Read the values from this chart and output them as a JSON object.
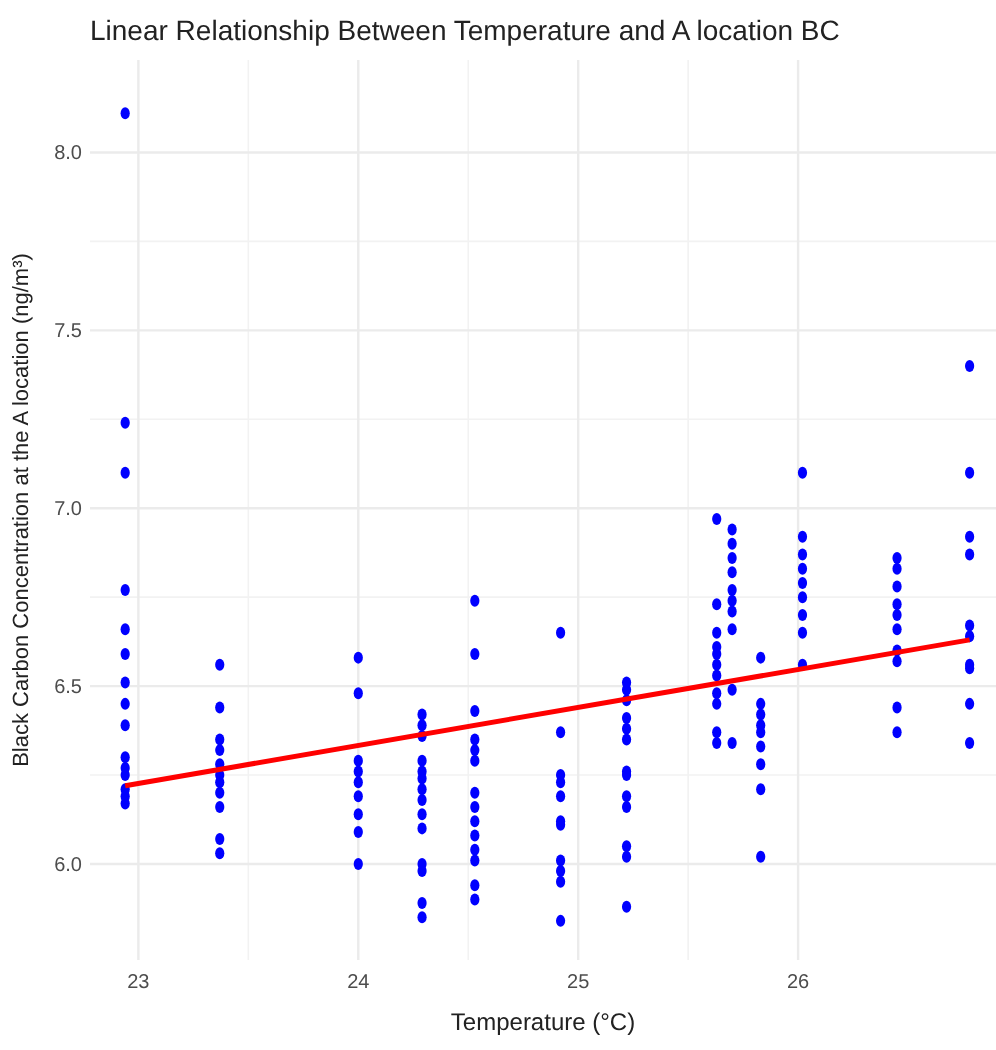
{
  "chart_data": {
    "type": "scatter",
    "title": "Linear Relationship Between Temperature and A location BC",
    "xlabel": "Temperature (°C)",
    "ylabel": "Black Carbon Concentration at the A location (ng/m³)",
    "xlim": [
      22.78,
      26.9
    ],
    "ylim": [
      5.73,
      8.26
    ],
    "xticks": [
      23,
      24,
      25,
      26
    ],
    "yticks": [
      {
        "value": 6,
        "label": "6.0"
      },
      {
        "value": 6.5,
        "label": "6.5"
      },
      {
        "value": 7,
        "label": "7.0"
      },
      {
        "value": 7.5,
        "label": "7.5"
      },
      {
        "value": 8,
        "label": "8.0"
      }
    ],
    "grid": true,
    "marker": "circle",
    "series": [
      {
        "color": "#0000ff",
        "x": [
          22.94,
          22.94,
          22.94,
          22.94,
          22.94,
          22.94,
          22.94,
          22.94,
          22.94,
          22.94,
          22.94,
          22.94,
          22.94,
          22.94,
          22.94,
          23.37,
          23.37,
          23.37,
          23.37,
          23.37,
          23.37,
          23.37,
          23.37,
          23.37,
          23.37,
          23.37,
          24.0,
          24.0,
          24.0,
          24.0,
          24.0,
          24.0,
          24.0,
          24.0,
          24.0,
          24.29,
          24.29,
          24.29,
          24.29,
          24.29,
          24.29,
          24.29,
          24.29,
          24.29,
          24.29,
          24.29,
          24.29,
          24.29,
          24.29,
          24.53,
          24.53,
          24.53,
          24.53,
          24.53,
          24.53,
          24.53,
          24.53,
          24.53,
          24.53,
          24.53,
          24.53,
          24.53,
          24.53,
          24.92,
          24.92,
          24.92,
          24.92,
          24.92,
          24.92,
          24.92,
          24.92,
          24.92,
          24.92,
          24.92,
          25.22,
          25.22,
          25.22,
          25.22,
          25.22,
          25.22,
          25.22,
          25.22,
          25.22,
          25.22,
          25.22,
          25.22,
          25.22,
          25.63,
          25.63,
          25.63,
          25.63,
          25.63,
          25.63,
          25.63,
          25.63,
          25.63,
          25.63,
          25.63,
          25.7,
          25.7,
          25.7,
          25.7,
          25.7,
          25.7,
          25.7,
          25.7,
          25.7,
          25.7,
          25.83,
          25.83,
          25.83,
          25.83,
          25.83,
          25.83,
          25.83,
          25.83,
          25.83,
          26.02,
          26.02,
          26.02,
          26.02,
          26.02,
          26.02,
          26.02,
          26.02,
          26.02,
          26.45,
          26.45,
          26.45,
          26.45,
          26.45,
          26.45,
          26.45,
          26.45,
          26.45,
          26.45,
          26.78,
          26.78,
          26.78,
          26.78,
          26.78,
          26.78,
          26.78,
          26.78,
          26.78,
          26.78
        ],
        "values": [
          8.11,
          7.24,
          7.1,
          6.77,
          6.66,
          6.59,
          6.51,
          6.45,
          6.39,
          6.3,
          6.27,
          6.25,
          6.21,
          6.19,
          6.17,
          6.56,
          6.44,
          6.35,
          6.32,
          6.28,
          6.25,
          6.23,
          6.2,
          6.16,
          6.07,
          6.03,
          6.58,
          6.48,
          6.29,
          6.26,
          6.23,
          6.19,
          6.14,
          6.09,
          6.0,
          6.42,
          6.39,
          6.36,
          6.29,
          6.26,
          6.24,
          6.21,
          6.18,
          6.14,
          6.1,
          6.0,
          5.98,
          5.89,
          5.85,
          6.74,
          6.59,
          6.43,
          6.35,
          6.32,
          6.29,
          6.2,
          6.16,
          6.12,
          6.08,
          6.04,
          6.01,
          5.94,
          5.9,
          6.65,
          6.37,
          6.25,
          6.23,
          6.19,
          6.12,
          6.11,
          6.01,
          5.98,
          5.95,
          5.84,
          6.51,
          6.49,
          6.46,
          6.41,
          6.38,
          6.35,
          6.26,
          6.25,
          6.19,
          6.16,
          6.05,
          6.02,
          5.88,
          6.97,
          6.73,
          6.65,
          6.61,
          6.59,
          6.56,
          6.53,
          6.48,
          6.45,
          6.37,
          6.34,
          6.94,
          6.9,
          6.86,
          6.82,
          6.77,
          6.74,
          6.71,
          6.66,
          6.49,
          6.34,
          6.58,
          6.45,
          6.42,
          6.39,
          6.37,
          6.33,
          6.28,
          6.21,
          6.02,
          7.1,
          6.92,
          6.87,
          6.83,
          6.79,
          6.75,
          6.7,
          6.65,
          6.56,
          6.86,
          6.83,
          6.78,
          6.73,
          6.7,
          6.66,
          6.6,
          6.57,
          6.44,
          6.37,
          7.4,
          7.1,
          6.92,
          6.87,
          6.67,
          6.64,
          6.56,
          6.55,
          6.45,
          6.34
        ]
      },
      {
        "type": "line",
        "color": "#ff0000",
        "marker": "none",
        "x": [
          22.94,
          26.78
        ],
        "values": [
          6.22,
          6.63
        ]
      }
    ]
  }
}
